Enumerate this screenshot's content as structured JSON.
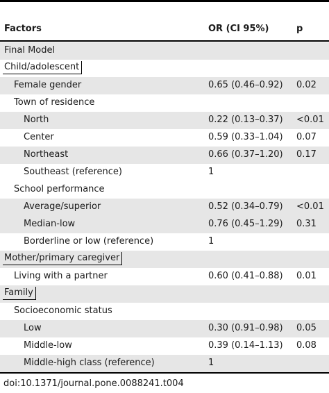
{
  "header": {
    "factors": "Factors",
    "or": "OR (CI 95%)",
    "p": "p"
  },
  "rows": [
    {
      "type": "group",
      "factor": "Final Model",
      "or": "",
      "p": ""
    },
    {
      "type": "section",
      "factor": "Child/adolescent",
      "or": "",
      "p": ""
    },
    {
      "type": "item",
      "factor": "Female gender",
      "or": "0.65 (0.46–0.92)",
      "p": "0.02"
    },
    {
      "type": "item",
      "factor": "Town of residence",
      "or": "",
      "p": ""
    },
    {
      "type": "sub",
      "factor": "North",
      "or": "0.22 (0.13–0.37)",
      "p": "<0.01"
    },
    {
      "type": "sub",
      "factor": "Center",
      "or": "0.59 (0.33–1.04)",
      "p": "0.07"
    },
    {
      "type": "sub",
      "factor": "Northeast",
      "or": "0.66 (0.37–1.20)",
      "p": "0.17"
    },
    {
      "type": "sub",
      "factor": "Southeast (reference)",
      "or": "1",
      "p": ""
    },
    {
      "type": "item",
      "factor": "School performance",
      "or": "",
      "p": ""
    },
    {
      "type": "sub",
      "factor": "Average/superior",
      "or": "0.52 (0.34–0.79)",
      "p": "<0.01"
    },
    {
      "type": "sub",
      "factor": "Median-low",
      "or": "0.76 (0.45–1.29)",
      "p": "0.31"
    },
    {
      "type": "sub",
      "factor": "Borderline or low (reference)",
      "or": "1",
      "p": ""
    },
    {
      "type": "section",
      "factor": "Mother/primary caregiver",
      "or": "",
      "p": ""
    },
    {
      "type": "item",
      "factor": "Living with a partner",
      "or": "0.60 (0.41–0.88)",
      "p": "0.01"
    },
    {
      "type": "section",
      "factor": "Family",
      "or": "",
      "p": ""
    },
    {
      "type": "item",
      "factor": "Socioeconomic status",
      "or": "",
      "p": ""
    },
    {
      "type": "sub",
      "factor": "Low",
      "or": "0.30 (0.91–0.98)",
      "p": "0.05"
    },
    {
      "type": "sub",
      "factor": "Middle-low",
      "or": "0.39 (0.14–1.13)",
      "p": "0.08"
    },
    {
      "type": "sub",
      "factor": "Middle-high class (reference)",
      "or": "1",
      "p": ""
    }
  ],
  "caption": "doi:10.1371/journal.pone.0088241.t004",
  "colors": {
    "row_shade": "#e6e6e6",
    "rule": "#000000"
  }
}
